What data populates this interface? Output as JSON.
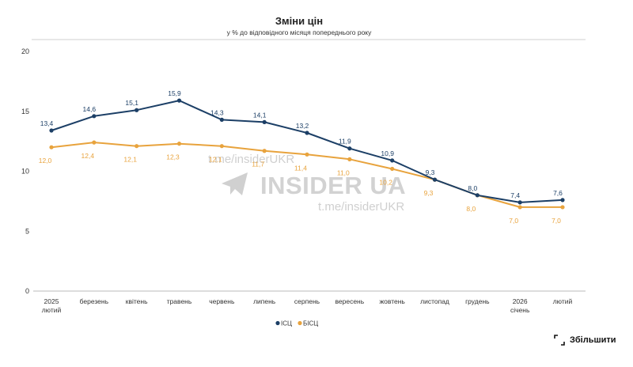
{
  "chart_data": {
    "type": "line",
    "title": "Зміни цін",
    "subtitle": "у % до відповідного місяця попереднього року",
    "categories": [
      [
        "2025",
        "лютий"
      ],
      [
        "березень"
      ],
      [
        "квітень"
      ],
      [
        "травень"
      ],
      [
        "червень"
      ],
      [
        "липень"
      ],
      [
        "серпень"
      ],
      [
        "вересень"
      ],
      [
        "жовтень"
      ],
      [
        "листопад"
      ],
      [
        "грудень"
      ],
      [
        "2026",
        "січень"
      ],
      [
        "лютий"
      ]
    ],
    "ylim": [
      0,
      20
    ],
    "yticks": [
      0,
      5,
      10,
      15,
      20
    ],
    "grid": false,
    "legend_position": "bottom",
    "series": [
      {
        "name": "ІСЦ",
        "color": "#1c3f66",
        "values": [
          13.4,
          14.6,
          15.1,
          15.9,
          14.3,
          14.1,
          13.2,
          11.9,
          10.9,
          9.3,
          8.0,
          7.4,
          7.6
        ],
        "labels": [
          "13,4",
          "14,6",
          "15,1",
          "15,9",
          "14,3",
          "14,1",
          "13,2",
          "11,9",
          "10,9",
          "9,3",
          "8,0",
          "7,4",
          "7,6"
        ]
      },
      {
        "name": "БІСЦ",
        "color": "#e8a33d",
        "values": [
          12.0,
          12.4,
          12.1,
          12.3,
          12.1,
          11.7,
          11.4,
          11.0,
          10.2,
          9.3,
          8.0,
          7.0,
          7.0
        ],
        "labels": [
          "12,0",
          "12,4",
          "12,1",
          "12,3",
          "12,1",
          "11,7",
          "11,4",
          "11,0",
          "10,2",
          "9,3",
          "8,0",
          "7,0",
          "7,0"
        ]
      }
    ]
  },
  "watermark": {
    "brand": "INSIDER UA",
    "handle_top": "t.me/insiderUKR",
    "handle_bottom": "t.me/insiderUKR"
  },
  "zoom": {
    "label": "Збільшити",
    "icon": "expand-icon"
  }
}
